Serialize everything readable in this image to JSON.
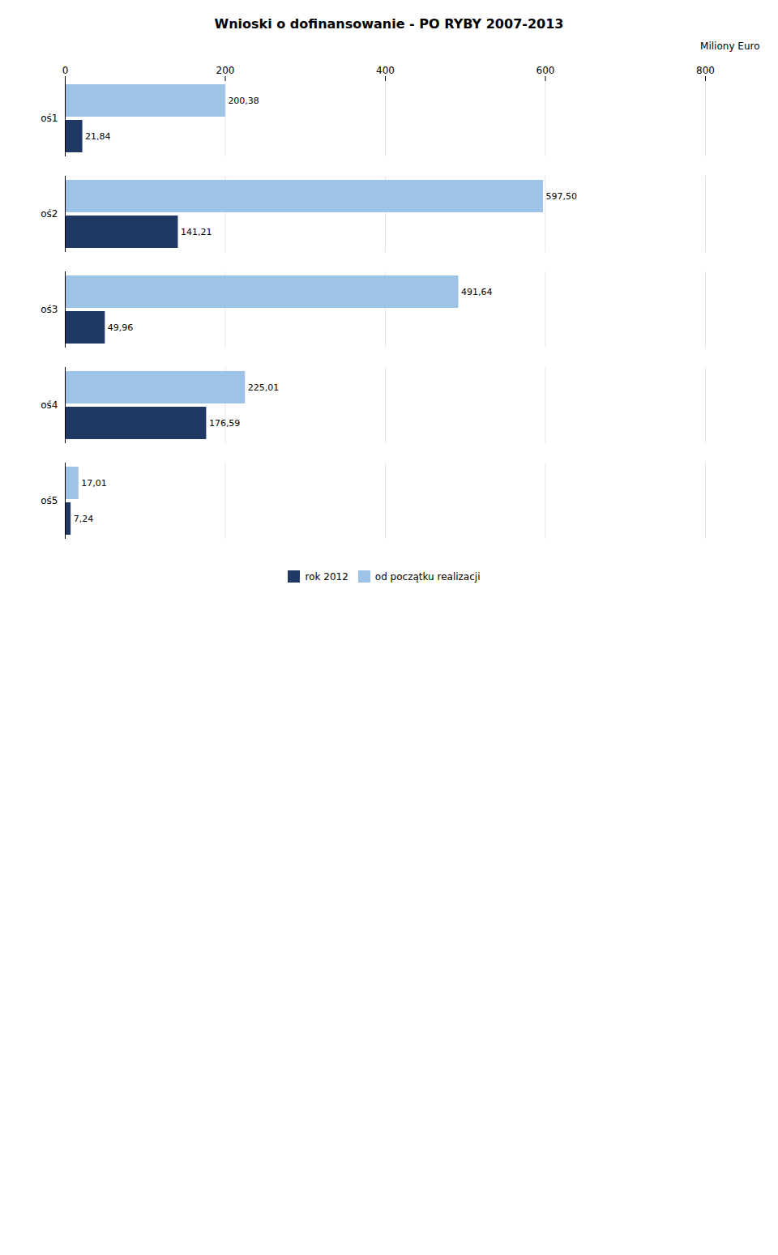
{
  "chart_data": {
    "type": "bar",
    "orientation": "horizontal",
    "title": "Wnioski o dofinansowanie - PO RYBY 2007-2013",
    "xlabel": "Miliony Euro",
    "categories": [
      "oś1",
      "oś2",
      "oś3",
      "oś4",
      "oś5"
    ],
    "series": [
      {
        "name": "rok 2012",
        "color": "#1F3864",
        "values": [
          21.84,
          141.21,
          49.96,
          176.59,
          7.24
        ],
        "value_labels": [
          "21,84",
          "141,21",
          "49,96",
          "176,59",
          "7,24"
        ]
      },
      {
        "name": "od początku realizacji",
        "color": "#9DC3E6",
        "values": [
          200.38,
          597.5,
          491.64,
          225.01,
          17.01
        ],
        "value_labels": [
          "200,38",
          "597,50",
          "491,64",
          "225,01",
          "17,01"
        ]
      }
    ],
    "xlim": [
      0,
      800
    ],
    "xticks": [
      0,
      200,
      400,
      600,
      800
    ],
    "grid": true,
    "legend": "bottom",
    "data_labels": true
  }
}
